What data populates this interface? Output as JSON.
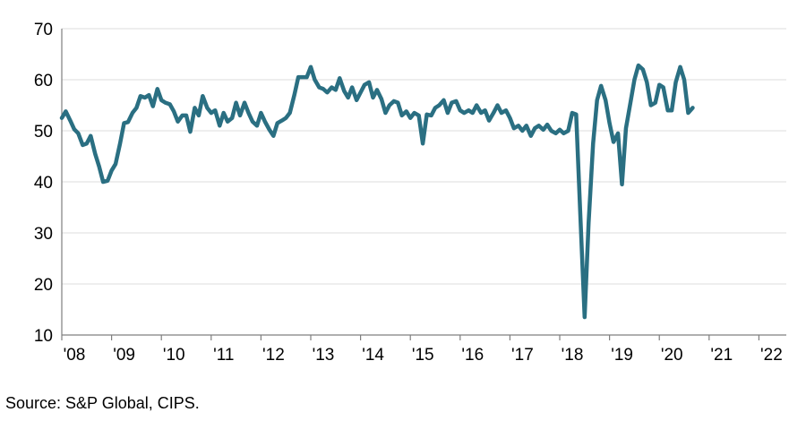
{
  "chart_data": {
    "type": "line",
    "title": "",
    "xlabel": "",
    "ylabel": "",
    "ylim": [
      10,
      70
    ],
    "yticks": [
      10,
      20,
      30,
      40,
      50,
      60,
      70
    ],
    "xlim": [
      2008,
      2022.55
    ],
    "xticks": [
      {
        "value": 2008,
        "label": "'08"
      },
      {
        "value": 2009,
        "label": "'09"
      },
      {
        "value": 2010,
        "label": "'10"
      },
      {
        "value": 2011,
        "label": "'11"
      },
      {
        "value": 2012,
        "label": "'12"
      },
      {
        "value": 2013,
        "label": "'13"
      },
      {
        "value": 2014,
        "label": "'14"
      },
      {
        "value": 2015,
        "label": "'15"
      },
      {
        "value": 2016,
        "label": "'16"
      },
      {
        "value": 2017,
        "label": "'17"
      },
      {
        "value": 2018,
        "label": "'18"
      },
      {
        "value": 2019,
        "label": "'19"
      },
      {
        "value": 2020,
        "label": "'20"
      },
      {
        "value": 2021,
        "label": "'21"
      },
      {
        "value": 2022,
        "label": "'22"
      }
    ],
    "grid": {
      "horizontal": true,
      "vertical": false
    },
    "legend": "none",
    "colors": {
      "line": "#2A6F82",
      "grid": "#DCDCDC",
      "axis": "#7F7F7F",
      "text": "#000000"
    },
    "series": [
      {
        "points": [
          [
            2008.0,
            52.5
          ],
          [
            2008.08,
            53.8
          ],
          [
            2008.17,
            52.0
          ],
          [
            2008.25,
            50.3
          ],
          [
            2008.33,
            49.5
          ],
          [
            2008.42,
            47.2
          ],
          [
            2008.5,
            47.5
          ],
          [
            2008.58,
            49.0
          ],
          [
            2008.67,
            45.5
          ],
          [
            2008.75,
            43.0
          ],
          [
            2008.83,
            40.0
          ],
          [
            2008.92,
            40.2
          ],
          [
            2009.0,
            42.2
          ],
          [
            2009.08,
            43.5
          ],
          [
            2009.17,
            47.5
          ],
          [
            2009.25,
            51.5
          ],
          [
            2009.33,
            51.7
          ],
          [
            2009.42,
            53.5
          ],
          [
            2009.5,
            54.5
          ],
          [
            2009.58,
            56.8
          ],
          [
            2009.67,
            56.5
          ],
          [
            2009.75,
            57.0
          ],
          [
            2009.83,
            54.8
          ],
          [
            2009.92,
            58.2
          ],
          [
            2010.0,
            56.0
          ],
          [
            2010.08,
            55.5
          ],
          [
            2010.17,
            55.2
          ],
          [
            2010.25,
            53.8
          ],
          [
            2010.33,
            51.8
          ],
          [
            2010.42,
            53.0
          ],
          [
            2010.5,
            53.0
          ],
          [
            2010.58,
            49.8
          ],
          [
            2010.67,
            54.5
          ],
          [
            2010.75,
            53.0
          ],
          [
            2010.83,
            56.8
          ],
          [
            2010.92,
            54.5
          ],
          [
            2011.0,
            53.5
          ],
          [
            2011.08,
            54.0
          ],
          [
            2011.17,
            51.0
          ],
          [
            2011.25,
            53.5
          ],
          [
            2011.33,
            51.8
          ],
          [
            2011.42,
            52.5
          ],
          [
            2011.5,
            55.5
          ],
          [
            2011.58,
            53.0
          ],
          [
            2011.67,
            55.5
          ],
          [
            2011.75,
            53.5
          ],
          [
            2011.83,
            51.8
          ],
          [
            2011.92,
            51.0
          ],
          [
            2012.0,
            53.5
          ],
          [
            2012.08,
            51.8
          ],
          [
            2012.17,
            50.2
          ],
          [
            2012.25,
            49.0
          ],
          [
            2012.33,
            51.5
          ],
          [
            2012.42,
            52.0
          ],
          [
            2012.5,
            52.5
          ],
          [
            2012.58,
            53.5
          ],
          [
            2012.67,
            57.0
          ],
          [
            2012.75,
            60.5
          ],
          [
            2012.83,
            60.5
          ],
          [
            2012.92,
            60.5
          ],
          [
            2013.0,
            62.5
          ],
          [
            2013.08,
            60.0
          ],
          [
            2013.17,
            58.5
          ],
          [
            2013.25,
            58.2
          ],
          [
            2013.33,
            57.5
          ],
          [
            2013.42,
            58.5
          ],
          [
            2013.5,
            58.0
          ],
          [
            2013.58,
            60.3
          ],
          [
            2013.67,
            57.8
          ],
          [
            2013.75,
            56.5
          ],
          [
            2013.83,
            58.5
          ],
          [
            2013.92,
            56.0
          ],
          [
            2014.0,
            57.5
          ],
          [
            2014.08,
            59.0
          ],
          [
            2014.17,
            59.5
          ],
          [
            2014.25,
            56.5
          ],
          [
            2014.33,
            58.0
          ],
          [
            2014.42,
            56.2
          ],
          [
            2014.5,
            53.5
          ],
          [
            2014.58,
            55.0
          ],
          [
            2014.67,
            55.8
          ],
          [
            2014.75,
            55.5
          ],
          [
            2014.83,
            53.0
          ],
          [
            2014.92,
            53.8
          ],
          [
            2015.0,
            52.5
          ],
          [
            2015.08,
            53.5
          ],
          [
            2015.17,
            53.0
          ],
          [
            2015.25,
            47.5
          ],
          [
            2015.33,
            53.2
          ],
          [
            2015.42,
            53.0
          ],
          [
            2015.5,
            54.5
          ],
          [
            2015.58,
            55.0
          ],
          [
            2015.67,
            56.0
          ],
          [
            2015.75,
            53.5
          ],
          [
            2015.83,
            55.5
          ],
          [
            2015.92,
            55.8
          ],
          [
            2016.0,
            54.0
          ],
          [
            2016.08,
            53.5
          ],
          [
            2016.17,
            54.0
          ],
          [
            2016.25,
            53.5
          ],
          [
            2016.33,
            55.0
          ],
          [
            2016.42,
            53.5
          ],
          [
            2016.5,
            54.0
          ],
          [
            2016.58,
            52.0
          ],
          [
            2016.67,
            53.5
          ],
          [
            2016.75,
            55.0
          ],
          [
            2016.83,
            53.5
          ],
          [
            2016.92,
            54.0
          ],
          [
            2017.0,
            52.5
          ],
          [
            2017.08,
            50.5
          ],
          [
            2017.17,
            51.0
          ],
          [
            2017.25,
            50.0
          ],
          [
            2017.33,
            51.0
          ],
          [
            2017.42,
            49.0
          ],
          [
            2017.5,
            50.5
          ],
          [
            2017.58,
            51.0
          ],
          [
            2017.67,
            50.2
          ],
          [
            2017.75,
            51.2
          ],
          [
            2017.83,
            50.0
          ],
          [
            2017.92,
            49.5
          ],
          [
            2018.0,
            50.2
          ],
          [
            2018.08,
            49.5
          ],
          [
            2018.17,
            50.0
          ],
          [
            2018.25,
            53.5
          ],
          [
            2018.33,
            53.2
          ],
          [
            2018.42,
            32.0
          ],
          [
            2018.5,
            13.5
          ],
          [
            2018.58,
            32.0
          ],
          [
            2018.67,
            47.5
          ],
          [
            2018.75,
            56.0
          ],
          [
            2018.83,
            58.8
          ],
          [
            2018.92,
            56.0
          ],
          [
            2019.0,
            51.5
          ],
          [
            2019.08,
            47.8
          ],
          [
            2019.17,
            49.5
          ],
          [
            2019.25,
            39.5
          ],
          [
            2019.33,
            50.5
          ],
          [
            2019.42,
            55.5
          ],
          [
            2019.5,
            60.0
          ],
          [
            2019.58,
            62.8
          ],
          [
            2019.67,
            62.0
          ],
          [
            2019.75,
            59.5
          ],
          [
            2019.83,
            55.0
          ],
          [
            2019.92,
            55.5
          ],
          [
            2020.0,
            59.0
          ],
          [
            2020.08,
            58.5
          ],
          [
            2020.17,
            54.0
          ],
          [
            2020.25,
            54.0
          ],
          [
            2020.33,
            59.5
          ],
          [
            2020.42,
            62.5
          ],
          [
            2020.5,
            60.0
          ],
          [
            2020.58,
            53.5
          ],
          [
            2020.67,
            54.5
          ]
        ]
      }
    ]
  },
  "source_note": "Source: S&P Global, CIPS."
}
